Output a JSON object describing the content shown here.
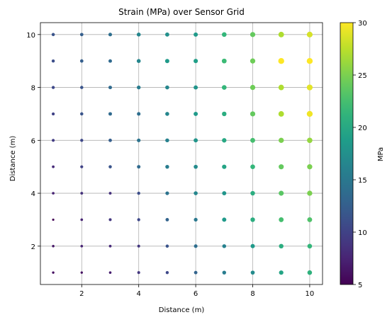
{
  "chart_data": {
    "type": "scatter",
    "title": "Strain (MPa) over Sensor Grid",
    "xlabel": "Distance (m)",
    "ylabel": "Distance (m)",
    "colorbar_label": "MPa",
    "xlim": [
      0.55,
      10.45
    ],
    "ylim": [
      0.55,
      10.45
    ],
    "xticks": [
      2,
      4,
      6,
      8,
      10
    ],
    "yticks": [
      2,
      4,
      6,
      8,
      10
    ],
    "colorbar_range": [
      5,
      30
    ],
    "colorbar_ticks": [
      5,
      10,
      15,
      20,
      25,
      30
    ],
    "colormap": "viridis",
    "grid": true,
    "x_values": [
      1,
      2,
      3,
      4,
      5,
      6,
      7,
      8,
      9,
      10
    ],
    "y_values": [
      10,
      9,
      8,
      7,
      6,
      5,
      4,
      3,
      2,
      1
    ],
    "z_rows": [
      [
        11.5,
        12.5,
        14.0,
        16.5,
        17.5,
        18.5,
        21.5,
        24.0,
        27.0,
        28.5
      ],
      [
        11.0,
        12.5,
        13.5,
        16.5,
        18.5,
        19.0,
        22.0,
        24.5,
        30.0,
        30.0
      ],
      [
        10.5,
        11.5,
        13.5,
        15.5,
        16.5,
        18.0,
        21.5,
        24.5,
        27.0,
        29.0
      ],
      [
        10.0,
        11.5,
        13.5,
        14.0,
        16.5,
        18.5,
        20.5,
        24.0,
        27.0,
        29.5
      ],
      [
        9.5,
        10.5,
        12.5,
        14.5,
        16.0,
        18.0,
        20.0,
        22.5,
        25.0,
        26.0
      ],
      [
        8.0,
        10.0,
        11.5,
        13.5,
        15.5,
        17.0,
        19.5,
        21.5,
        24.0,
        25.0
      ],
      [
        7.5,
        8.5,
        8.5,
        11.0,
        14.5,
        16.5,
        18.0,
        20.5,
        23.5,
        25.0
      ],
      [
        5.0,
        7.5,
        9.0,
        10.5,
        13.0,
        15.0,
        18.5,
        20.5,
        22.5,
        23.0
      ],
      [
        6.5,
        7.5,
        8.0,
        9.0,
        11.5,
        14.0,
        16.0,
        18.5,
        20.5,
        21.5
      ],
      [
        6.0,
        6.0,
        7.0,
        9.0,
        10.5,
        13.0,
        15.5,
        17.0,
        19.5,
        21.0
      ]
    ]
  }
}
